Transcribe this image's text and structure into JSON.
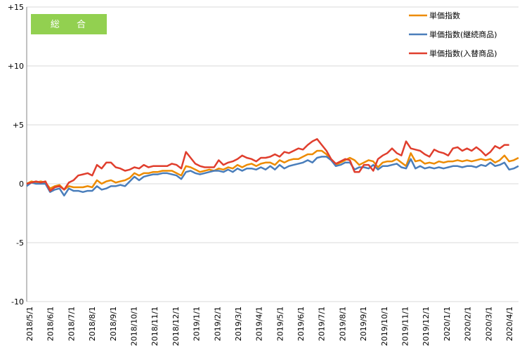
{
  "chart_data": {
    "type": "line",
    "title": "",
    "badge": "総 合",
    "badge_color": "#92d050",
    "xlabel": "",
    "ylabel": "",
    "ylim": [
      -10,
      15
    ],
    "y_ticks": [
      {
        "value": 15,
        "label": "+15"
      },
      {
        "value": 10,
        "label": "+10"
      },
      {
        "value": 5,
        "label": "+5"
      },
      {
        "value": 0,
        "label": "0"
      },
      {
        "value": -5,
        "label": "-5"
      },
      {
        "value": -10,
        "label": "-10"
      }
    ],
    "x_ticks": [
      "2018/5/1",
      "2018/6/1",
      "2018/7/1",
      "2018/8/1",
      "2018/9/1",
      "2018/10/1",
      "2018/11/1",
      "2018/12/1",
      "2019/1/1",
      "2019/2/1",
      "2019/3/1",
      "2019/4/1",
      "2019/5/1",
      "2019/6/1",
      "2019/7/1",
      "2019/8/1",
      "2019/9/1",
      "2019/10/1",
      "2019/11/1",
      "2019/12/1",
      "2020/1/1",
      "2020/2/1",
      "2020/3/1",
      "2020/4/1"
    ],
    "grid": "horizontal",
    "legend_position": "top-right",
    "series": [
      {
        "name": "単価指数",
        "color": "#ed8b00",
        "values": [
          0.0,
          0.2,
          0.1,
          0.2,
          0.1,
          -0.4,
          -0.2,
          -0.1,
          -0.5,
          -0.2,
          -0.3,
          -0.3,
          -0.3,
          -0.2,
          -0.3,
          0.3,
          0.0,
          0.2,
          0.3,
          0.1,
          0.2,
          0.3,
          0.5,
          0.9,
          0.7,
          0.9,
          0.9,
          1.0,
          1.0,
          1.1,
          1.1,
          1.1,
          0.9,
          0.7,
          1.5,
          1.4,
          1.2,
          1.0,
          1.1,
          1.2,
          1.1,
          1.3,
          1.2,
          1.4,
          1.3,
          1.6,
          1.4,
          1.6,
          1.7,
          1.5,
          1.7,
          1.8,
          1.8,
          1.6,
          2.0,
          1.8,
          2.0,
          2.1,
          2.1,
          2.3,
          2.5,
          2.5,
          2.8,
          2.8,
          2.5,
          2.0,
          1.6,
          1.8,
          2.0,
          2.2,
          2.0,
          1.6,
          1.8,
          2.0,
          1.9,
          1.4,
          1.8,
          1.9,
          1.9,
          2.1,
          1.8,
          1.5,
          2.6,
          1.9,
          2.0,
          1.7,
          1.8,
          1.7,
          1.9,
          1.8,
          1.9,
          1.9,
          2.0,
          1.9,
          2.0,
          1.9,
          2.0,
          2.1,
          2.0,
          2.1,
          1.8,
          2.0,
          2.4,
          1.9,
          2.0,
          2.2
        ]
      },
      {
        "name": "単価指数(継続商品)",
        "color": "#4a7ebb",
        "values": [
          -0.2,
          0.1,
          0.0,
          0.0,
          0.0,
          -0.7,
          -0.5,
          -0.4,
          -1.0,
          -0.4,
          -0.6,
          -0.6,
          -0.7,
          -0.6,
          -0.6,
          -0.2,
          -0.5,
          -0.4,
          -0.2,
          -0.2,
          -0.1,
          -0.2,
          0.2,
          0.6,
          0.3,
          0.6,
          0.7,
          0.8,
          0.8,
          0.9,
          0.9,
          0.8,
          0.7,
          0.4,
          1.0,
          1.1,
          0.9,
          0.8,
          0.9,
          1.0,
          1.1,
          1.1,
          1.0,
          1.2,
          1.0,
          1.3,
          1.1,
          1.3,
          1.3,
          1.2,
          1.4,
          1.2,
          1.5,
          1.2,
          1.6,
          1.3,
          1.5,
          1.6,
          1.7,
          1.8,
          2.0,
          1.8,
          2.2,
          2.3,
          2.3,
          2.0,
          1.5,
          1.6,
          1.8,
          1.8,
          1.2,
          1.4,
          1.4,
          1.3,
          1.6,
          1.2,
          1.5,
          1.5,
          1.6,
          1.7,
          1.4,
          1.3,
          2.1,
          1.3,
          1.5,
          1.3,
          1.4,
          1.3,
          1.4,
          1.3,
          1.4,
          1.5,
          1.5,
          1.4,
          1.5,
          1.5,
          1.4,
          1.6,
          1.5,
          1.8,
          1.5,
          1.6,
          1.8,
          1.2,
          1.3,
          1.5
        ]
      },
      {
        "name": "単価指数(入替商品)",
        "color": "#e03e2d",
        "values": [
          0.0,
          0.1,
          0.2,
          0.1,
          0.2,
          -0.6,
          -0.3,
          -0.2,
          -0.5,
          0.1,
          0.3,
          0.7,
          0.8,
          0.9,
          0.7,
          1.6,
          1.3,
          1.8,
          1.8,
          1.4,
          1.3,
          1.1,
          1.2,
          1.4,
          1.3,
          1.6,
          1.4,
          1.5,
          1.5,
          1.5,
          1.5,
          1.7,
          1.6,
          1.3,
          2.7,
          2.2,
          1.7,
          1.5,
          1.4,
          1.4,
          1.4,
          2.0,
          1.6,
          1.8,
          1.9,
          2.1,
          2.4,
          2.2,
          2.1,
          1.9,
          2.2,
          2.2,
          2.3,
          2.5,
          2.3,
          2.7,
          2.6,
          2.8,
          3.0,
          2.9,
          3.3,
          3.6,
          3.8,
          3.3,
          2.8,
          2.1,
          1.7,
          1.9,
          2.1,
          2.0,
          1.0,
          1.0,
          1.6,
          1.6,
          1.1,
          2.1,
          2.4,
          2.6,
          3.0,
          2.6,
          2.4,
          3.6,
          3.0,
          2.9,
          2.8,
          2.5,
          2.3,
          2.9,
          2.7,
          2.6,
          2.4,
          3.0,
          3.1,
          2.8,
          3.0,
          2.8,
          3.1,
          2.8,
          2.4,
          2.7,
          3.2,
          3.0,
          3.3,
          3.3
        ]
      }
    ]
  }
}
